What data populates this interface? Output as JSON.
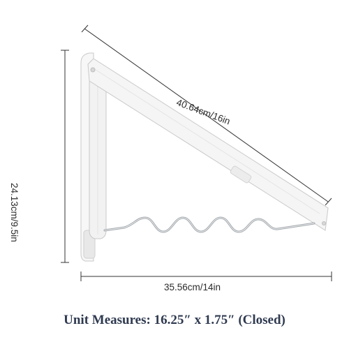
{
  "dimensions": {
    "diagonal_label": "40.64cm/16in",
    "height_label": "24.13cm/9.5in",
    "width_label": "35.56cm/14in"
  },
  "caption": "Unit Measures: 16.25″ x 1.75″ (Closed)",
  "colors": {
    "frame": "#f4f4f4",
    "frame_edge": "#cfcfcf",
    "wire": "#9ea3a8",
    "dimension_line": "#333333",
    "caption_text": "#2f3a50"
  }
}
